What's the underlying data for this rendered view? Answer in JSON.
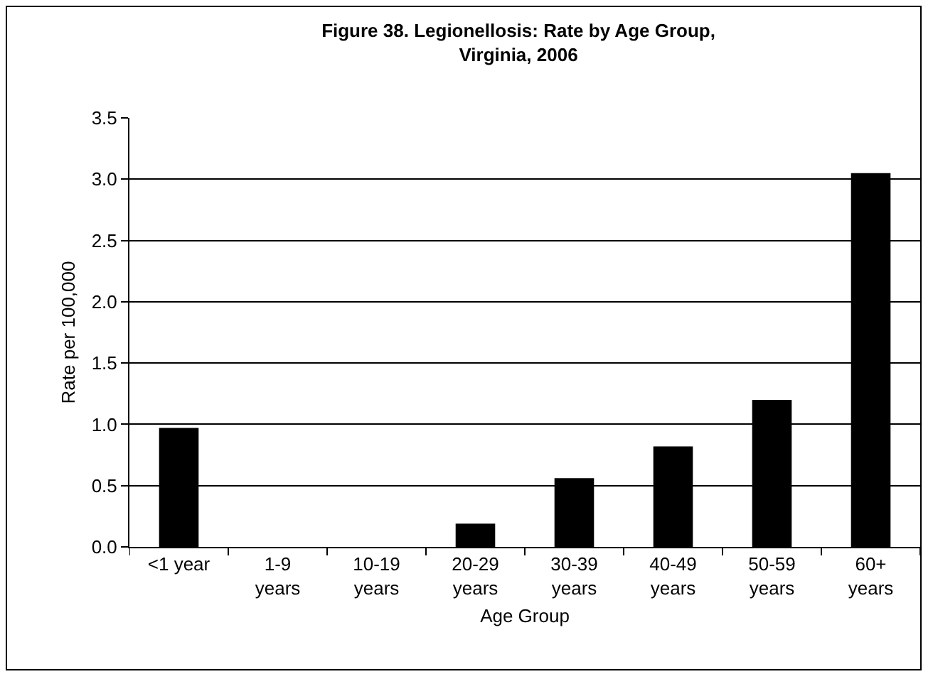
{
  "chart_data": {
    "type": "bar",
    "title": "Figure 38. Legionellosis: Rate by Age Group,\nVirginia, 2006",
    "xlabel": "Age Group",
    "ylabel": "Rate per 100,000",
    "categories": [
      "<1 year",
      "1-9 years",
      "10-19 years",
      "20-29 years",
      "30-39 years",
      "40-49 years",
      "50-59 years",
      "60+ years"
    ],
    "values": [
      0.97,
      0,
      0,
      0.19,
      0.56,
      0.82,
      1.2,
      3.05
    ],
    "color": "#000000",
    "ylim": [
      0,
      3.5
    ],
    "yticks": [
      {
        "value": 0,
        "label": "0.0"
      },
      {
        "value": 0.5,
        "label": "0.5"
      },
      {
        "value": 1,
        "label": "1.0"
      },
      {
        "value": 1.5,
        "label": "1.5"
      },
      {
        "value": 2,
        "label": "2.0"
      },
      {
        "value": 2.5,
        "label": "2.5"
      },
      {
        "value": 3,
        "label": "3.0"
      },
      {
        "value": 3.5,
        "label": "3.5"
      }
    ],
    "grid": "y"
  }
}
